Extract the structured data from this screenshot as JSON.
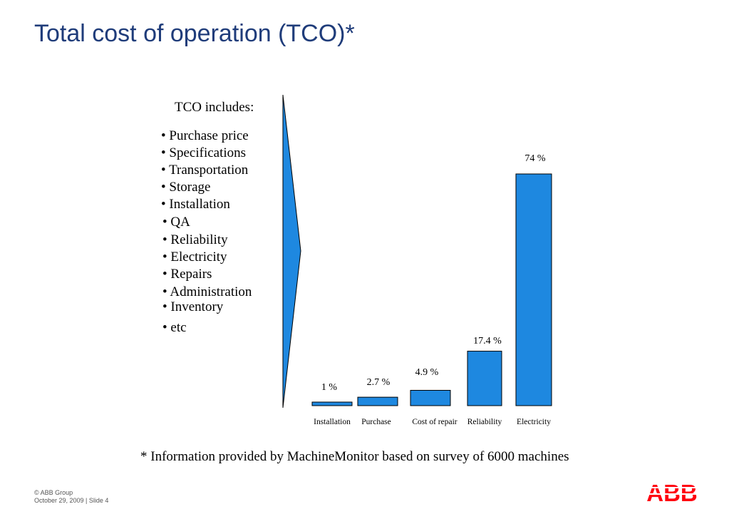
{
  "slide": {
    "title": "Total cost of operation (TCO)*",
    "includes_heading": "TCO includes:",
    "includes": [
      "Purchase price",
      "Specifications",
      "Transportation",
      "Storage",
      "Installation",
      "QA",
      "Reliability",
      "Electricity",
      "Repairs",
      "Administration",
      "Inventory",
      "etc"
    ],
    "footnote": "* Information provided by MachineMonitor based on survey of 6000 machines",
    "copyright": "© ABB Group",
    "date_slide": "October 29, 2009 | Slide 4",
    "logo_text": "ABB"
  },
  "colors": {
    "bar": "#1e88e0",
    "title": "#1f3c7a",
    "logo": "#ff000f"
  },
  "chart_data": {
    "type": "bar",
    "title": "",
    "categories": [
      "Installation",
      "Purchase",
      "Cost of repair",
      "Reliability",
      "Electricity"
    ],
    "values": [
      1,
      2.7,
      4.9,
      17.4,
      74
    ],
    "data_labels": [
      "1 %",
      "2.7 %",
      "4.9 %",
      "17.4 %",
      "74 %"
    ],
    "unit": "%",
    "ylim": [
      0,
      74
    ],
    "xlabel": "",
    "ylabel": "",
    "grid": false,
    "legend": "none"
  }
}
